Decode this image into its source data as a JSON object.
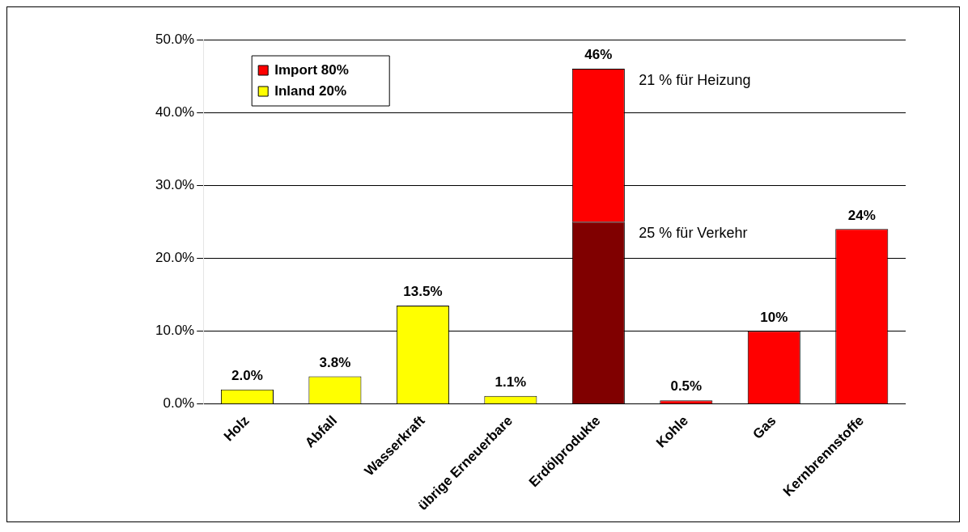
{
  "chart_data": {
    "type": "bar",
    "categories": [
      "Holz",
      "Abfall",
      "Wasserkraft",
      "übrige Erneuerbare",
      "Erdölprodukte",
      "Kohle",
      "Gas",
      "Kernbrennstoffe"
    ],
    "series": [
      {
        "name": "Inland 20%",
        "color": "#ffff00",
        "values": [
          2.0,
          3.8,
          13.5,
          1.1,
          null,
          null,
          null,
          null
        ]
      },
      {
        "color": "#800000",
        "values": [
          null,
          null,
          null,
          null,
          25,
          null,
          null,
          null
        ]
      },
      {
        "name": "Import 80%",
        "color": "#ff0000",
        "values": [
          null,
          null,
          null,
          null,
          21,
          0.5,
          10,
          24
        ]
      }
    ],
    "stacked": true,
    "totals": [
      "2.0%",
      "3.8%",
      "13.5%",
      "1.1%",
      "46%",
      "0.5%",
      "10%",
      "24%"
    ],
    "annotations": [
      "21 % für Heizung",
      "25 % für Verkehr"
    ],
    "ylim": [
      0,
      50
    ],
    "yticks": [
      {
        "value": 0,
        "label": "0.0%"
      },
      {
        "value": 10,
        "label": "10.0%"
      },
      {
        "value": 20,
        "label": "20.0%"
      },
      {
        "value": 30,
        "label": "30.0%"
      },
      {
        "value": 40,
        "label": "40.0%"
      },
      {
        "value": 50,
        "label": "50.0%"
      }
    ],
    "grid": "y",
    "legend": "top left"
  }
}
